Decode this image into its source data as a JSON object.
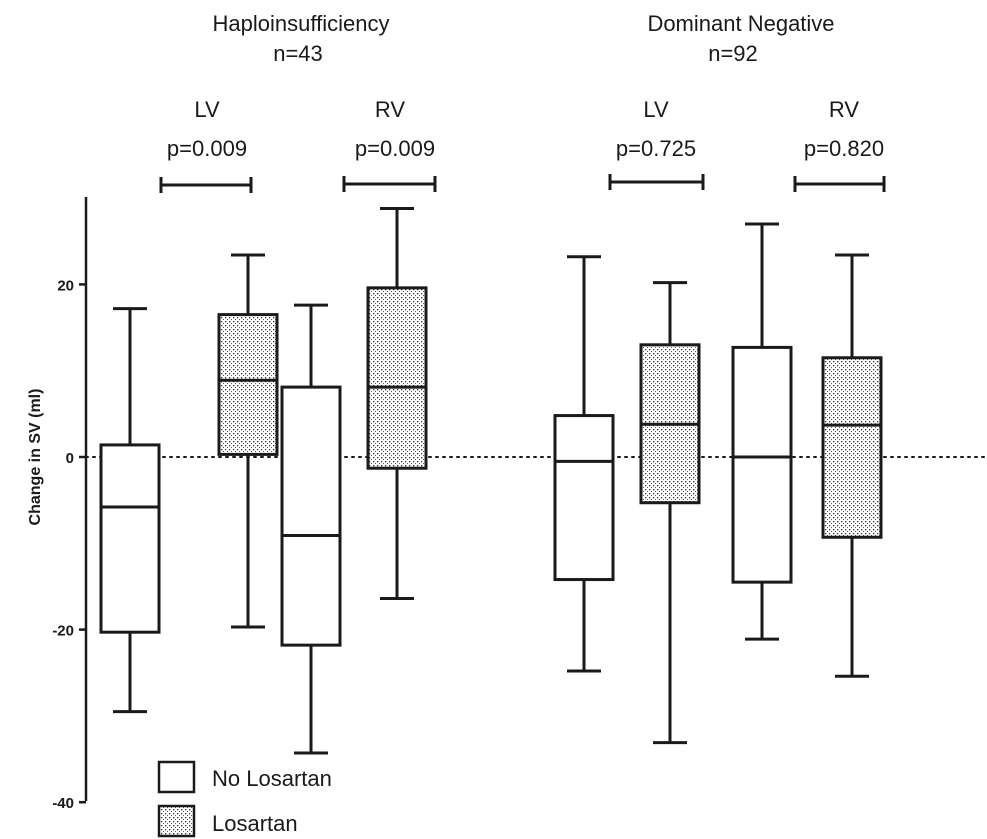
{
  "chart_data": {
    "type": "box",
    "ylabel": "Change in SV (ml)",
    "ylim": [
      -40,
      30
    ],
    "yticks": [
      -40,
      -20,
      0,
      20
    ],
    "reference_line": 0,
    "groups": [
      {
        "title": "Haploinsufficiency",
        "n_label": "n=43",
        "comparisons": [
          {
            "label": "LV",
            "p": "p=0.009"
          },
          {
            "label": "RV",
            "p": "p=0.009"
          }
        ]
      },
      {
        "title": "Dominant Negative",
        "n_label": "n=92",
        "comparisons": [
          {
            "label": "LV",
            "p": "p=0.725"
          },
          {
            "label": "RV",
            "p": "p=0.820"
          }
        ]
      }
    ],
    "legend": [
      {
        "name": "No Losartan",
        "fill": "white"
      },
      {
        "name": "Losartan",
        "fill": "dotted"
      }
    ],
    "boxes": [
      {
        "group": "Haploinsufficiency",
        "ventricle": "LV",
        "series": "No Losartan",
        "whisker_low": -29.5,
        "q1": -20.3,
        "median": -5.8,
        "q3": 1.4,
        "whisker_high": 17.2
      },
      {
        "group": "Haploinsufficiency",
        "ventricle": "LV",
        "series": "Losartan",
        "whisker_low": -19.7,
        "q1": 0.3,
        "median": 8.9,
        "q3": 16.5,
        "whisker_high": 23.4
      },
      {
        "group": "Haploinsufficiency",
        "ventricle": "RV",
        "series": "No Losartan",
        "whisker_low": -34.3,
        "q1": -21.8,
        "median": -9.1,
        "q3": 8.1,
        "whisker_high": 17.6
      },
      {
        "group": "Haploinsufficiency",
        "ventricle": "RV",
        "series": "Losartan",
        "whisker_low": -16.4,
        "q1": -1.3,
        "median": 8.1,
        "q3": 19.6,
        "whisker_high": 28.8
      },
      {
        "group": "Dominant Negative",
        "ventricle": "LV",
        "series": "No Losartan",
        "whisker_low": -24.8,
        "q1": -14.2,
        "median": -0.5,
        "q3": 4.8,
        "whisker_high": 23.2
      },
      {
        "group": "Dominant Negative",
        "ventricle": "LV",
        "series": "Losartan",
        "whisker_low": -33.1,
        "q1": -5.3,
        "median": 3.8,
        "q3": 13.0,
        "whisker_high": 20.2
      },
      {
        "group": "Dominant Negative",
        "ventricle": "RV",
        "series": "No Losartan",
        "whisker_low": -21.1,
        "q1": -14.5,
        "median": 0.0,
        "q3": 12.7,
        "whisker_high": 27.0
      },
      {
        "group": "Dominant Negative",
        "ventricle": "RV",
        "series": "Losartan",
        "whisker_low": -25.4,
        "q1": -9.3,
        "median": 3.7,
        "q3": 11.5,
        "whisker_high": 23.4
      }
    ]
  }
}
